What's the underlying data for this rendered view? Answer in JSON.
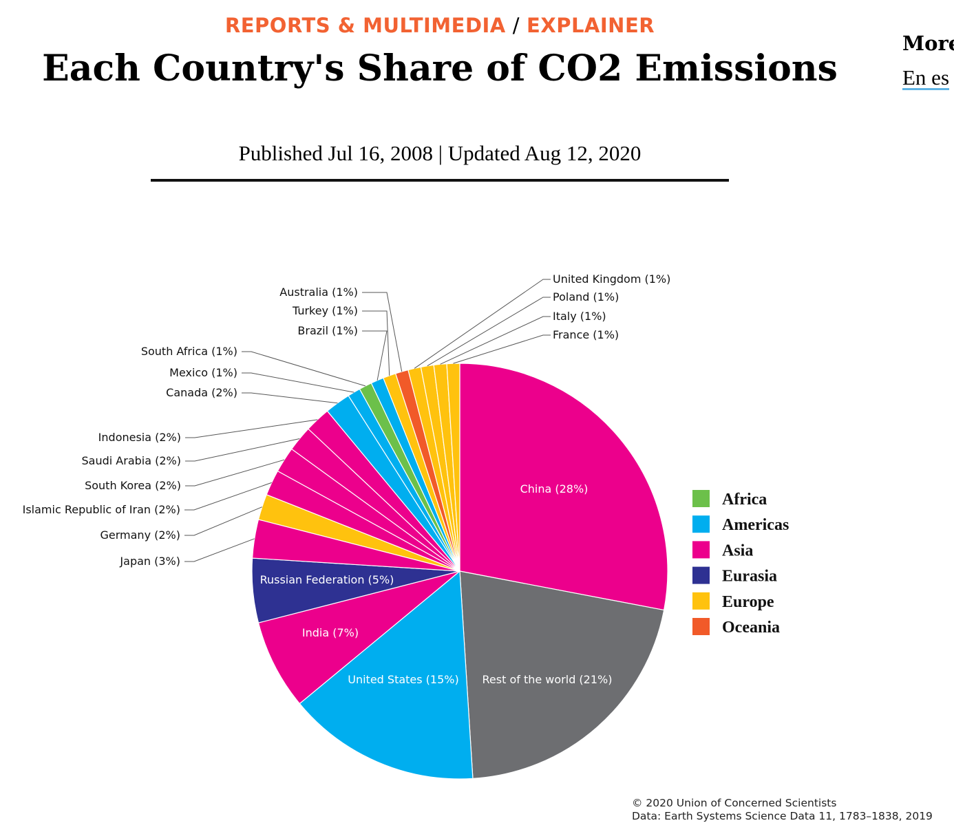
{
  "header": {
    "kicker_section": "REPORTS & MULTIMEDIA",
    "kicker_separator": "/",
    "kicker_type": "EXPLAINER",
    "title": "Each Country's Share of CO2 Emissions",
    "published": "Published Jul 16, 2008 | Updated Aug 12, 2020"
  },
  "sidebar": {
    "more_label": "More",
    "language_link": "En es"
  },
  "credit": {
    "copyright": "© 2020 Union of Concerned Scientists",
    "source": "Data: Earth Systems Science Data 11, 1783–1838, 2019"
  },
  "colors": {
    "Africa": "#6cc04a",
    "Americas": "#00aeef",
    "Asia": "#ec008c",
    "Eurasia": "#2e3192",
    "Europe": "#ffc20e",
    "Oceania": "#f15a29",
    "Other": "#6d6e71",
    "accent": "#f26232"
  },
  "chart_data": {
    "type": "pie",
    "title": "",
    "legend_position": "right",
    "legend": [
      "Africa",
      "Americas",
      "Asia",
      "Eurasia",
      "Europe",
      "Oceania"
    ],
    "slices": [
      {
        "label": "China (28%)",
        "value": 28,
        "region": "Asia"
      },
      {
        "label": "Rest of the world (21%)",
        "value": 21,
        "region": "Other"
      },
      {
        "label": "United States (15%)",
        "value": 15,
        "region": "Americas"
      },
      {
        "label": "India (7%)",
        "value": 7,
        "region": "Asia"
      },
      {
        "label": "Russian Federation (5%)",
        "value": 5,
        "region": "Eurasia"
      },
      {
        "label": "Japan (3%)",
        "value": 3,
        "region": "Asia"
      },
      {
        "label": "Germany (2%)",
        "value": 2,
        "region": "Europe"
      },
      {
        "label": "Islamic Republic of Iran (2%)",
        "value": 2,
        "region": "Asia"
      },
      {
        "label": "South Korea (2%)",
        "value": 2,
        "region": "Asia"
      },
      {
        "label": "Saudi Arabia (2%)",
        "value": 2,
        "region": "Asia"
      },
      {
        "label": "Indonesia (2%)",
        "value": 2,
        "region": "Asia"
      },
      {
        "label": "Canada (2%)",
        "value": 2,
        "region": "Americas"
      },
      {
        "label": "Mexico (1%)",
        "value": 1,
        "region": "Americas"
      },
      {
        "label": "South Africa (1%)",
        "value": 1,
        "region": "Africa"
      },
      {
        "label": "Brazil (1%)",
        "value": 1,
        "region": "Americas"
      },
      {
        "label": "Turkey (1%)",
        "value": 1,
        "region": "Europe"
      },
      {
        "label": "Australia (1%)",
        "value": 1,
        "region": "Oceania"
      },
      {
        "label": "United Kingdom (1%)",
        "value": 1,
        "region": "Europe"
      },
      {
        "label": "Poland (1%)",
        "value": 1,
        "region": "Europe"
      },
      {
        "label": "Italy (1%)",
        "value": 1,
        "region": "Europe"
      },
      {
        "label": "France (1%)",
        "value": 1,
        "region": "Europe"
      }
    ]
  }
}
